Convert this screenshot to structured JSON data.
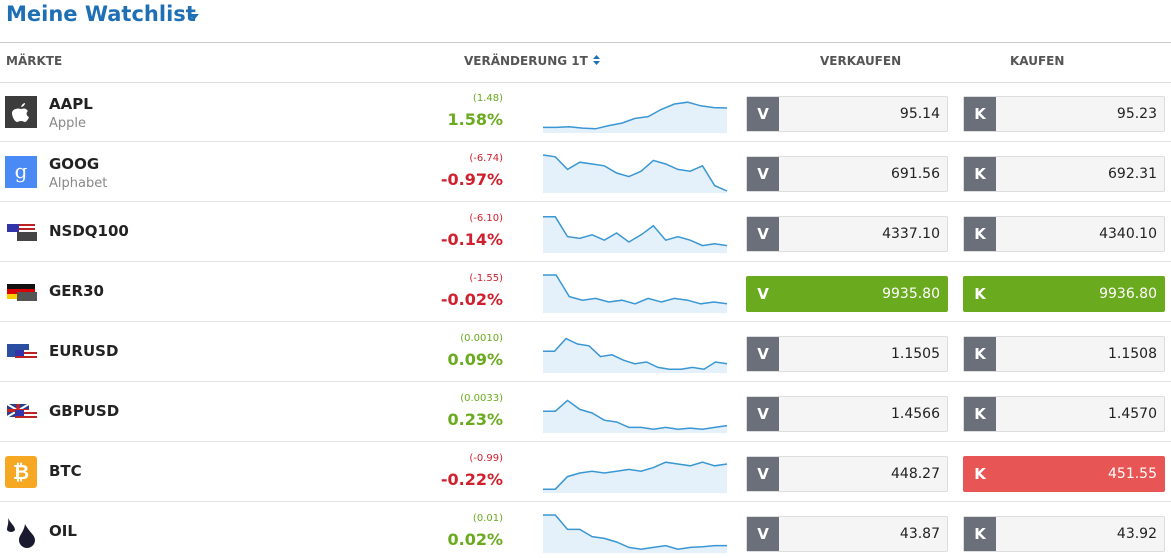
{
  "header": {
    "title": "Meine Watchlist"
  },
  "columns": [
    "MÄRKTE",
    "VERÄNDERUNG 1T",
    "VERKAUFEN",
    "KAUFEN"
  ],
  "sell_label": "V",
  "buy_label": "K",
  "rows": [
    {
      "symbol": "AAPL",
      "name": "Apple",
      "change_abs": "(1.48)",
      "change_pct": "1.58%",
      "change_color": "#6aaa1e",
      "sell": "95.14",
      "buy": "95.23",
      "sell_color": "#f5f5f5",
      "buy_color": "#f5f5f5",
      "icon": "apple",
      "sparkline": [
        10,
        10,
        12,
        8,
        6,
        15,
        22,
        35,
        40,
        60,
        75,
        80,
        70,
        65,
        64
      ]
    },
    {
      "symbol": "GOOG",
      "name": "Alphabet",
      "change_abs": "(-6.74)",
      "change_pct": "-0.97%",
      "change_color": "#d0202e",
      "sell": "691.56",
      "buy": "692.31",
      "sell_color": "#f5f5f5",
      "buy_color": "#f5f5f5",
      "icon": "google",
      "sparkline": [
        100,
        95,
        60,
        80,
        75,
        70,
        50,
        40,
        55,
        85,
        75,
        60,
        55,
        70,
        15,
        0
      ]
    },
    {
      "symbol": "NSDQ100",
      "change_abs": "(-6.10)",
      "change_pct": "-0.14%",
      "change_color": "#d0202e",
      "sell": "4337.10",
      "buy": "4340.10",
      "sell_color": "#f5f5f5",
      "buy_color": "#f5f5f5",
      "icon": "us",
      "sparkline": [
        95,
        95,
        40,
        35,
        45,
        30,
        50,
        25,
        45,
        70,
        30,
        40,
        30,
        15,
        20,
        15
      ]
    },
    {
      "symbol": "GER30",
      "change_abs": "(-1.55)",
      "change_pct": "-0.02%",
      "change_color": "#d0202e",
      "sell": "9935.80",
      "buy": "9936.80",
      "sell_color": "#6aaa1e",
      "buy_color": "#6aaa1e",
      "icon": "de",
      "sparkline": [
        100,
        100,
        40,
        30,
        35,
        25,
        30,
        20,
        35,
        25,
        35,
        30,
        20,
        25,
        20
      ]
    },
    {
      "symbol": "EURUSD",
      "change_abs": "(0.0010)",
      "change_pct": "0.09%",
      "change_color": "#6aaa1e",
      "sell": "1.1505",
      "buy": "1.1508",
      "sell_color": "#f5f5f5",
      "buy_color": "#f5f5f5",
      "icon": "eu",
      "sparkline": [
        55,
        55,
        90,
        75,
        70,
        40,
        45,
        30,
        20,
        25,
        10,
        5,
        5,
        10,
        5,
        25,
        20
      ]
    },
    {
      "symbol": "GBPUSD",
      "change_abs": "(0.0033)",
      "change_pct": "0.23%",
      "change_color": "#6aaa1e",
      "sell": "1.4566",
      "buy": "1.4570",
      "sell_color": "#f5f5f5",
      "buy_color": "#f5f5f5",
      "icon": "gb",
      "sparkline": [
        55,
        55,
        85,
        60,
        50,
        30,
        25,
        10,
        10,
        5,
        10,
        5,
        8,
        5,
        10,
        15
      ]
    },
    {
      "symbol": "BTC",
      "change_abs": "(-0.99)",
      "change_pct": "-0.22%",
      "change_color": "#d0202e",
      "sell": "448.27",
      "buy": "451.55",
      "sell_color": "#f5f5f5",
      "buy_color": "#e85555",
      "icon": "btc",
      "sparkline": [
        5,
        5,
        40,
        50,
        55,
        50,
        55,
        60,
        55,
        65,
        80,
        75,
        70,
        80,
        70,
        75
      ]
    },
    {
      "symbol": "OIL",
      "change_abs": "(0.01)",
      "change_pct": "0.02%",
      "change_color": "#6aaa1e",
      "sell": "43.87",
      "buy": "43.92",
      "sell_color": "#f5f5f5",
      "buy_color": "#f5f5f5",
      "icon": "oil",
      "sparkline": [
        100,
        100,
        60,
        60,
        40,
        35,
        25,
        10,
        5,
        10,
        15,
        5,
        10,
        12,
        15,
        15
      ]
    }
  ]
}
